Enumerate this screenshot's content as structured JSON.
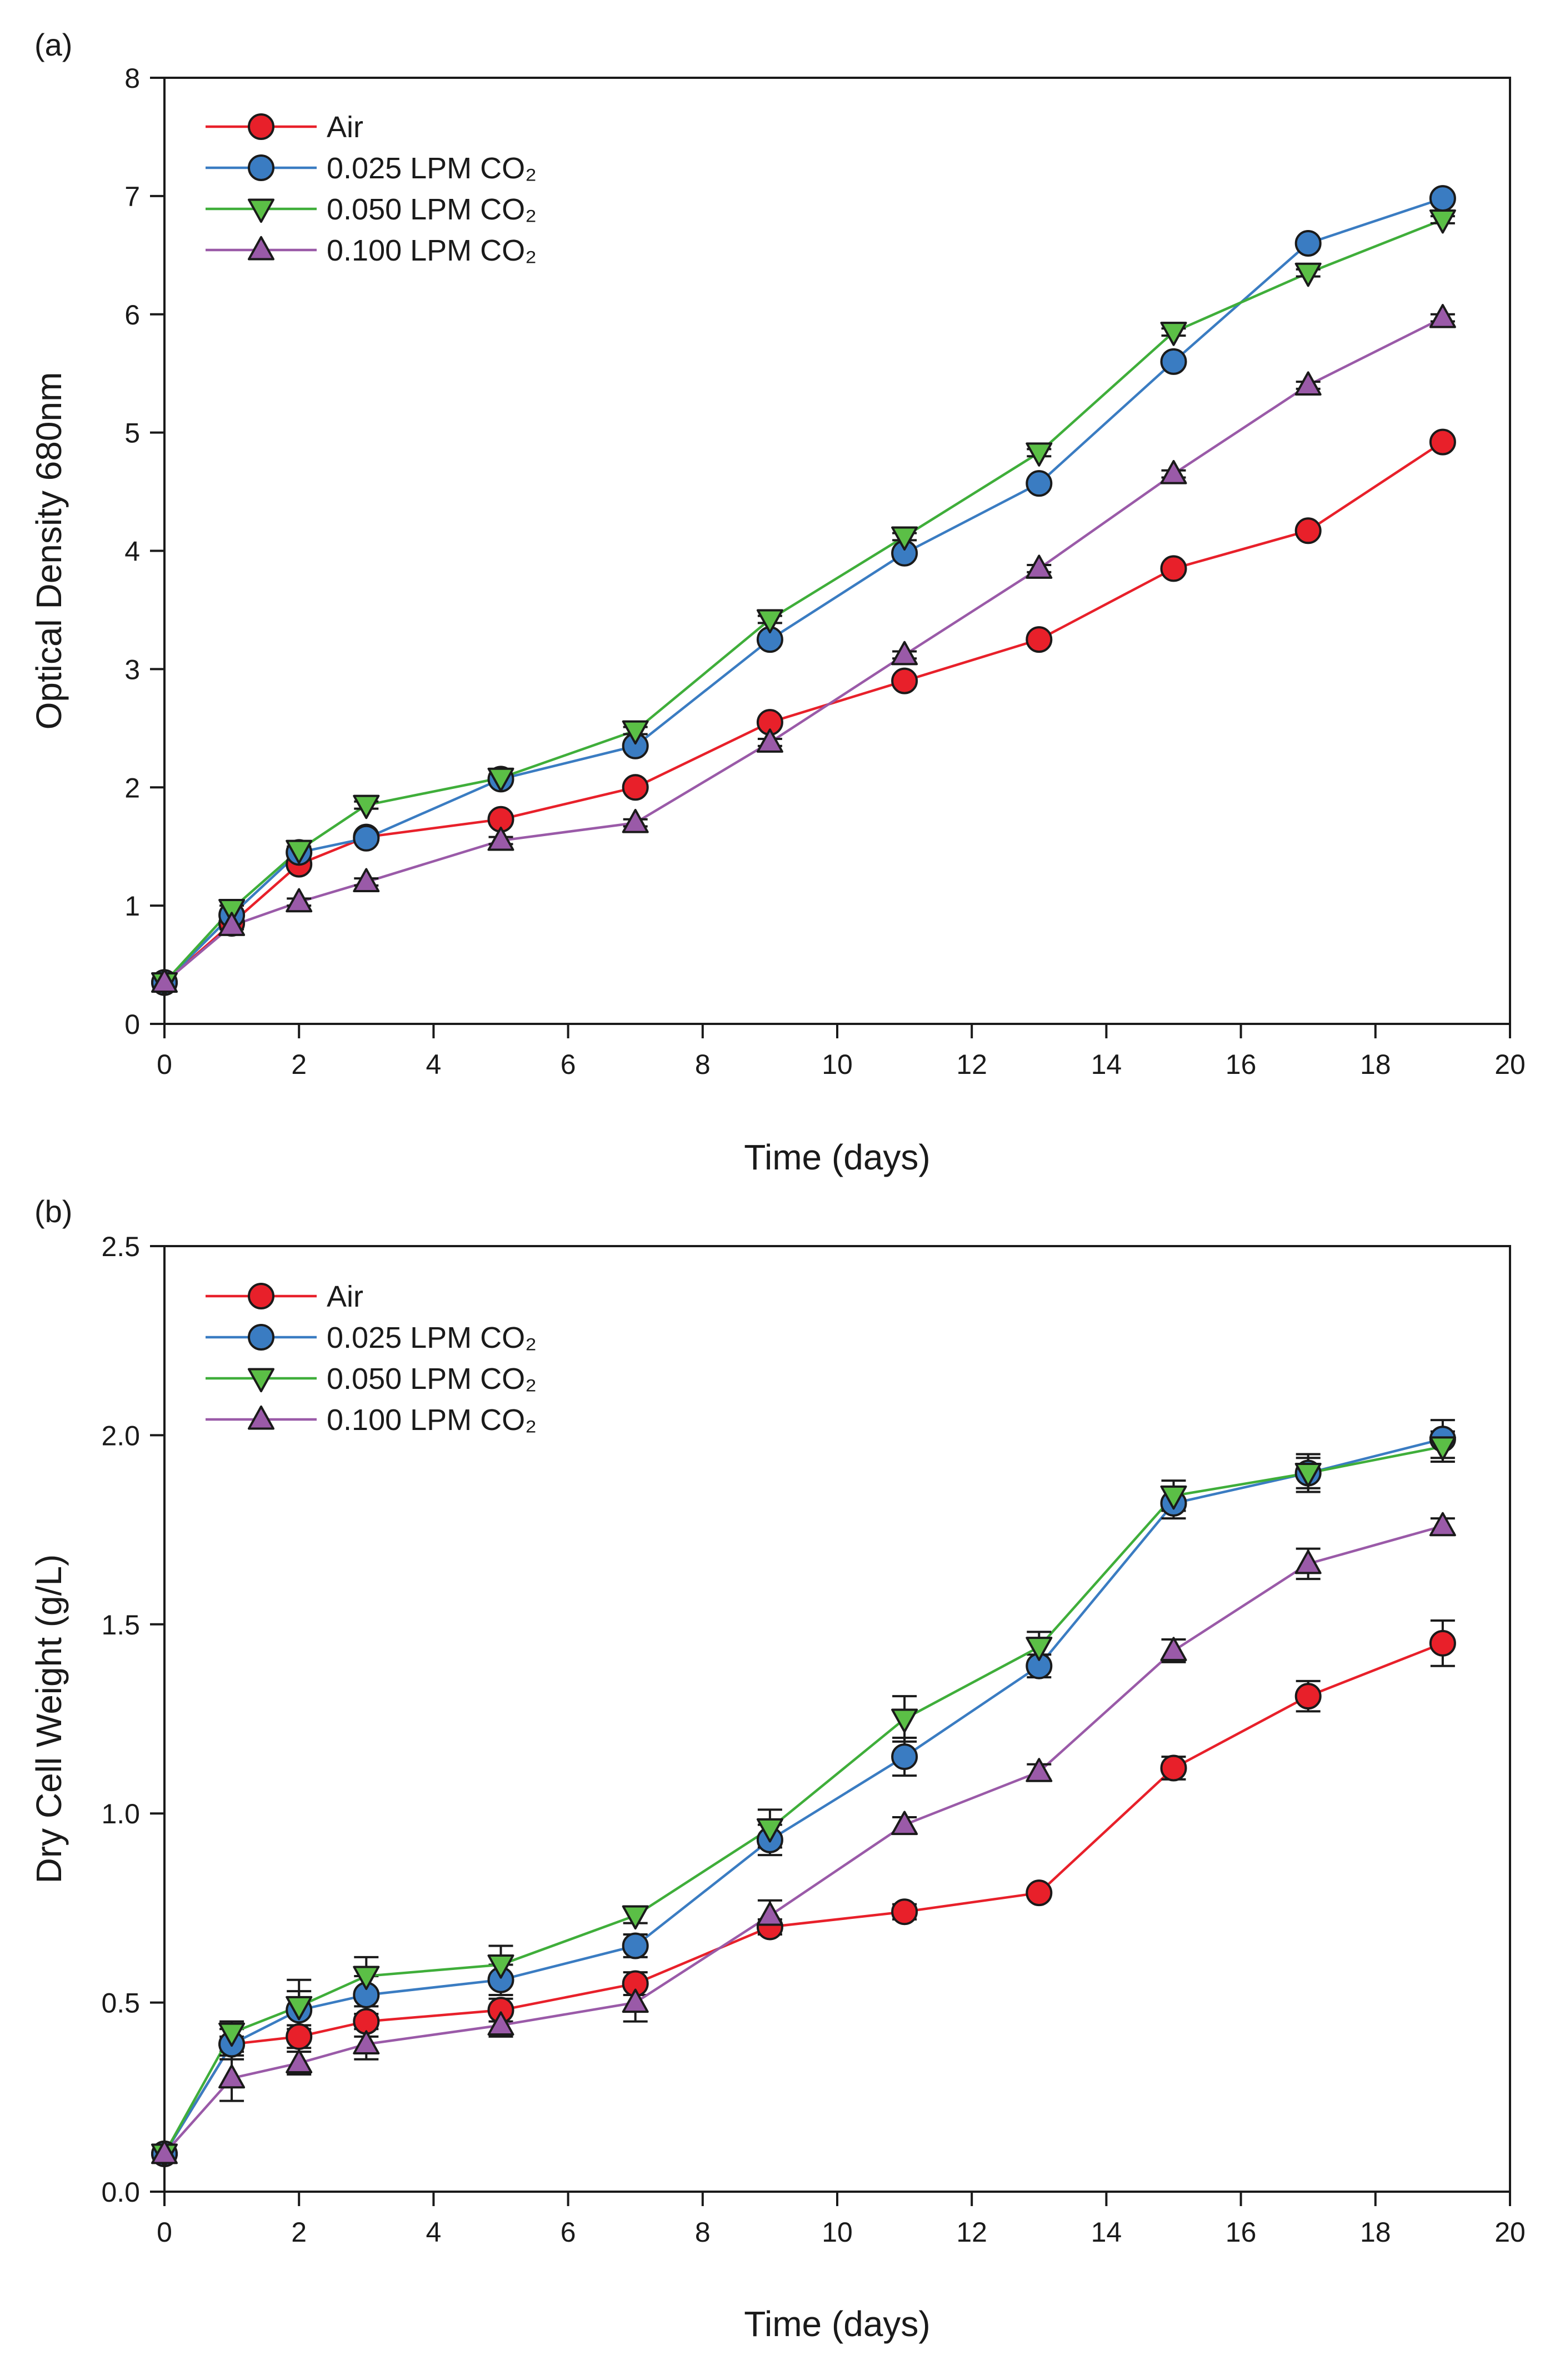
{
  "chart_data": [
    {
      "panel_label": "(a)",
      "type": "line",
      "xlabel": "Time (days)",
      "ylabel": "Optical Density 680nm",
      "xlim": [
        0,
        20
      ],
      "ylim": [
        0,
        8
      ],
      "xticks": [
        "0",
        "2",
        "4",
        "6",
        "8",
        "10",
        "12",
        "14",
        "16",
        "18",
        "20"
      ],
      "yticks": [
        "0",
        "1",
        "2",
        "3",
        "4",
        "5",
        "6",
        "7",
        "8"
      ],
      "legend_position": "top-left",
      "x": [
        0,
        1,
        2,
        3,
        5,
        7,
        9,
        11,
        13,
        15,
        17,
        19
      ],
      "series": [
        {
          "name": "Air",
          "color": "#e8202a",
          "line_color": "#e8202a",
          "marker": "circle",
          "values": [
            0.35,
            0.85,
            1.35,
            1.58,
            1.73,
            2.0,
            2.55,
            2.9,
            3.25,
            3.85,
            4.17,
            4.92
          ],
          "errors": [
            0.02,
            0.03,
            0.03,
            0.03,
            0.03,
            0.03,
            0.03,
            0.03,
            0.03,
            0.03,
            0.03,
            0.03
          ]
        },
        {
          "name": "0.025 LPM CO₂",
          "color": "#3a7cc2",
          "line_color": "#3a7cc2",
          "marker": "circle",
          "values": [
            0.35,
            0.92,
            1.45,
            1.57,
            2.07,
            2.35,
            3.25,
            3.98,
            4.57,
            5.6,
            6.6,
            6.98
          ],
          "errors": [
            0.02,
            0.03,
            0.03,
            0.03,
            0.03,
            0.03,
            0.03,
            0.03,
            0.03,
            0.03,
            0.03,
            0.03
          ]
        },
        {
          "name": "0.050 LPM CO₂",
          "color": "#5bbf46",
          "line_color": "#3fae3a",
          "marker": "triangle-down",
          "values": [
            0.35,
            0.97,
            1.47,
            1.85,
            2.08,
            2.48,
            3.42,
            4.12,
            4.83,
            5.85,
            6.35,
            6.8
          ],
          "errors": [
            0.02,
            0.03,
            0.03,
            0.03,
            0.03,
            0.03,
            0.03,
            0.03,
            0.03,
            0.03,
            0.03,
            0.03
          ]
        },
        {
          "name": "0.100 LPM CO₂",
          "color": "#9a5aa8",
          "line_color": "#9a5aa8",
          "marker": "triangle-up",
          "values": [
            0.35,
            0.83,
            1.03,
            1.2,
            1.55,
            1.7,
            2.38,
            3.12,
            3.85,
            4.65,
            5.4,
            5.97
          ],
          "errors": [
            0.02,
            0.03,
            0.03,
            0.03,
            0.03,
            0.03,
            0.03,
            0.03,
            0.03,
            0.03,
            0.03,
            0.03
          ]
        }
      ]
    },
    {
      "panel_label": "(b)",
      "type": "line",
      "xlabel": "Time (days)",
      "ylabel": "Dry Cell Weight (g/L)",
      "xlim": [
        0,
        20
      ],
      "ylim": [
        0,
        2.5
      ],
      "xticks": [
        "0",
        "2",
        "4",
        "6",
        "8",
        "10",
        "12",
        "14",
        "16",
        "18",
        "20"
      ],
      "yticks": [
        "0.0",
        "0.5",
        "1.0",
        "1.5",
        "2.0",
        "2.5"
      ],
      "legend_position": "top-left",
      "x": [
        0,
        1,
        2,
        3,
        5,
        7,
        9,
        11,
        13,
        15,
        17,
        19
      ],
      "series": [
        {
          "name": "Air",
          "color": "#e8202a",
          "line_color": "#e8202a",
          "marker": "circle",
          "values": [
            0.1,
            0.39,
            0.41,
            0.45,
            0.48,
            0.55,
            0.7,
            0.74,
            0.79,
            1.12,
            1.31,
            1.45
          ],
          "errors": [
            0.01,
            0.02,
            0.03,
            0.04,
            0.03,
            0.03,
            0.02,
            0.02,
            0.01,
            0.03,
            0.04,
            0.06
          ]
        },
        {
          "name": "0.025 LPM CO₂",
          "color": "#3a7cc2",
          "line_color": "#3a7cc2",
          "marker": "circle",
          "values": [
            0.1,
            0.39,
            0.48,
            0.52,
            0.56,
            0.65,
            0.93,
            1.15,
            1.39,
            1.82,
            1.9,
            1.99
          ],
          "errors": [
            0.01,
            0.04,
            0.05,
            0.05,
            0.04,
            0.03,
            0.04,
            0.05,
            0.03,
            0.04,
            0.04,
            0.05
          ]
        },
        {
          "name": "0.050 LPM CO₂",
          "color": "#5bbf46",
          "line_color": "#3fae3a",
          "marker": "triangle-down",
          "values": [
            0.1,
            0.42,
            0.49,
            0.57,
            0.6,
            0.73,
            0.96,
            1.25,
            1.44,
            1.84,
            1.9,
            1.97
          ],
          "errors": [
            0.01,
            0.03,
            0.07,
            0.05,
            0.05,
            0.02,
            0.05,
            0.06,
            0.04,
            0.04,
            0.05,
            0.04
          ]
        },
        {
          "name": "0.100 LPM CO₂",
          "color": "#9a5aa8",
          "line_color": "#9a5aa8",
          "marker": "triangle-up",
          "values": [
            0.1,
            0.3,
            0.34,
            0.39,
            0.44,
            0.5,
            0.73,
            0.97,
            1.11,
            1.43,
            1.66,
            1.76
          ],
          "errors": [
            0.01,
            0.06,
            0.03,
            0.04,
            0.03,
            0.05,
            0.04,
            0.02,
            0.02,
            0.03,
            0.04,
            0.02
          ]
        }
      ]
    }
  ]
}
